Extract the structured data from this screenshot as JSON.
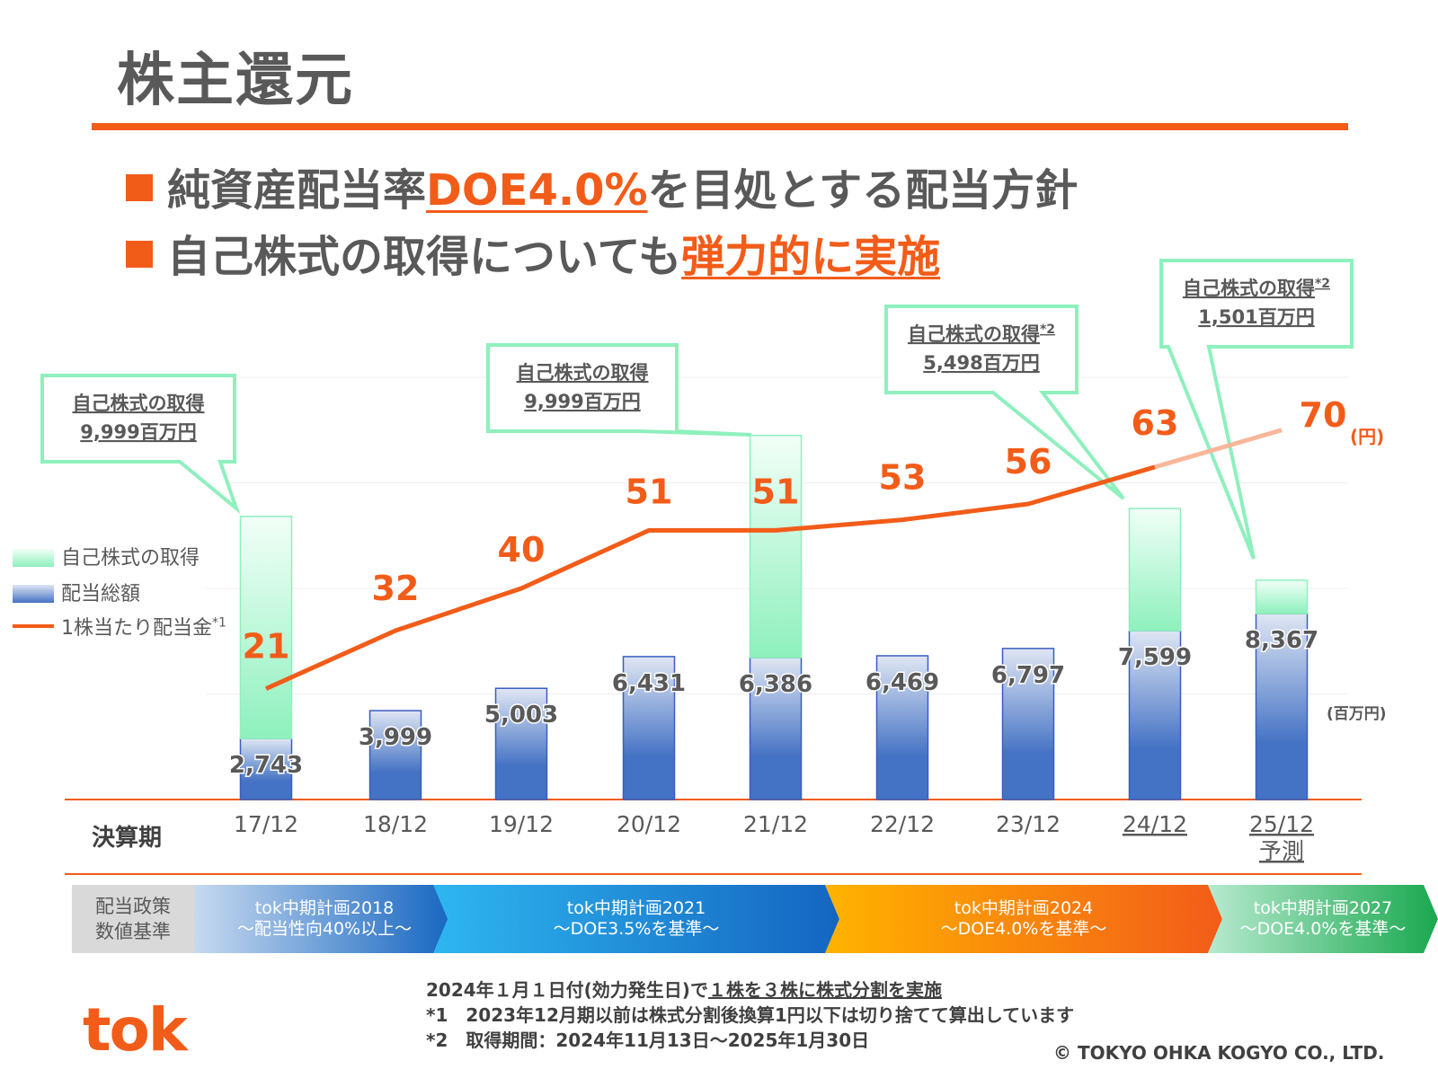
{
  "title": "株主還元",
  "bullets": [
    {
      "pre": "純資産配当率",
      "hl": "DOE4.0%",
      "post": "を目処とする配当方針"
    },
    {
      "pre": "自己株式の取得についても",
      "hl": "弾力的に実施",
      "post": ""
    }
  ],
  "colors": {
    "accent": "#f25c19",
    "buyback": "#8ef0bd",
    "dividend": "#4472c4"
  },
  "legend": {
    "buyback": "自己株式の取得",
    "dividend": "配当総額",
    "dps": "1株当たり配当金",
    "dps_note": "*1"
  },
  "axis": {
    "xlabel": "決算期",
    "forecast_label": "予測"
  },
  "units": {
    "dps": "(円)",
    "amount": "(百万円)"
  },
  "callouts": [
    {
      "label": "自己株式の取得",
      "note": "",
      "amount": "9,999百万円"
    },
    {
      "label": "自己株式の取得",
      "note": "",
      "amount": "9,999百万円"
    },
    {
      "label": "自己株式の取得",
      "note": "*2",
      "amount": "5,498百万円"
    },
    {
      "label": "自己株式の取得",
      "note": "*2",
      "amount": "1,501百万円"
    }
  ],
  "chart_data": {
    "type": "bar",
    "categories": [
      "17/12",
      "18/12",
      "19/12",
      "20/12",
      "21/12",
      "22/12",
      "23/12",
      "24/12",
      "25/12"
    ],
    "series": [
      {
        "name": "配当総額",
        "unit": "百万円",
        "values": [
          2743,
          3999,
          5003,
          6431,
          6386,
          6469,
          6797,
          7599,
          8367
        ],
        "labels": [
          "2,743",
          "3,999",
          "5,003",
          "6,431",
          "6,386",
          "6,469",
          "6,797",
          "7,599",
          "8,367"
        ]
      },
      {
        "name": "自己株式の取得",
        "unit": "百万円",
        "values": [
          9999,
          0,
          0,
          0,
          9999,
          0,
          0,
          5498,
          1501
        ]
      },
      {
        "name": "1株当たり配当金",
        "type": "line",
        "unit": "円",
        "values": [
          21,
          32,
          40,
          51,
          51,
          53,
          56,
          63,
          70
        ]
      }
    ],
    "ylim_amount": [
      0,
      19000
    ],
    "ylim_dps": [
      0,
      80
    ]
  },
  "policy": {
    "label_line1": "配当政策",
    "label_line2": "数値基準",
    "phases": [
      {
        "name": "tok中期計画2018",
        "desc": "～配当性向40%以上～"
      },
      {
        "name": "tok中期計画2021",
        "desc": "～DOE3.5%を基準～"
      },
      {
        "name": "tok中期計画2024",
        "desc": "～DOE4.0%を基準～"
      },
      {
        "name": "tok中期計画2027",
        "desc": "～DOE4.0%を基準～"
      }
    ]
  },
  "notes": {
    "line1_pre": "2024年１月１日付(効力発生日)で",
    "line1_u": "１株を３株に株式分割を実施",
    "line2": "*1　2023年12月期以前は株式分割後換算1円以下は切り捨てて算出しています",
    "line3": "*2　取得期間：2024年11月13日～2025年1月30日"
  },
  "logo": "tok",
  "copyright": "© TOKYO OHKA KOGYO CO., LTD."
}
